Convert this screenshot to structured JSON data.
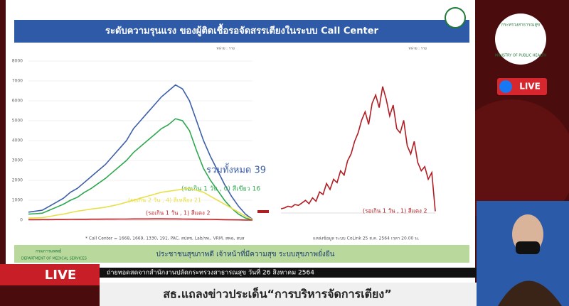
{
  "slide": {
    "title": "ระดับความรุนแรง ของผู้ติดเชื้อรอจัดสรรเตียงในระบบ Call Center",
    "department": "กรมการแพทย์",
    "department_en": "DEPARTMENT OF MEDICAL SERVICES",
    "slogan": "ประชาชนสุขภาพดี เจ้าหน้าที่มีความสุข ระบบสุขภาพยั่งยืน"
  },
  "chart_data": [
    {
      "type": "line",
      "unit": "หน่วย : ราย",
      "ylim": [
        0,
        8000
      ],
      "yticks": [
        0,
        1000,
        2000,
        3000,
        4000,
        5000,
        6000,
        7000,
        8000
      ],
      "footnote": "* Call Center = 1668, 1669, 1330, 191, PAC, สปสช, Lab/รพ., VRM, สพฉ, สบส",
      "series": [
        {
          "name": "รวมทั้งหมด 39",
          "color": "#3c5fa8",
          "values": [
            400,
            450,
            500,
            700,
            900,
            1100,
            1400,
            1600,
            1900,
            2200,
            2500,
            2800,
            3200,
            3600,
            4000,
            4600,
            5000,
            5400,
            5800,
            6200,
            6500,
            6800,
            6600,
            6000,
            5000,
            4000,
            3200,
            2500,
            1800,
            1200,
            700,
            300,
            39
          ]
        },
        {
          "name": "(รอเกิน 1 วัน , 0) สีเขียว 16",
          "color": "#2fa84f",
          "values": [
            300,
            320,
            350,
            500,
            650,
            800,
            1000,
            1150,
            1400,
            1600,
            1850,
            2100,
            2400,
            2700,
            3000,
            3400,
            3700,
            4000,
            4300,
            4600,
            4800,
            5100,
            5000,
            4500,
            3500,
            2600,
            2000,
            1500,
            1000,
            600,
            300,
            100,
            16
          ]
        },
        {
          "name": "(รอเกิน 2 วัน , 4) สีเหลือง 21",
          "color": "#e8e04a",
          "values": [
            100,
            110,
            130,
            180,
            250,
            300,
            380,
            450,
            500,
            560,
            600,
            650,
            720,
            800,
            900,
            1000,
            1100,
            1200,
            1300,
            1400,
            1450,
            1500,
            1550,
            1600,
            1500,
            1400,
            1200,
            1000,
            800,
            600,
            400,
            200,
            21
          ]
        },
        {
          "name": "(รอเกิน 1 วัน , 1) สีแดง 2",
          "color": "#c0242a",
          "values": [
            20,
            20,
            25,
            25,
            30,
            30,
            35,
            40,
            40,
            45,
            45,
            50,
            50,
            55,
            55,
            60,
            60,
            60,
            65,
            65,
            60,
            60,
            55,
            50,
            45,
            40,
            35,
            30,
            20,
            15,
            10,
            5,
            2
          ]
        }
      ]
    },
    {
      "type": "line",
      "unit": "หน่วย : ราย",
      "ylim": [
        0,
        160
      ],
      "footnote": "แหล่งข้อมูล ระบบ CoLink 25 ส.ค. 2564 เวลา 20.00 น.",
      "series": [
        {
          "name": "(รอเกิน 1 วัน , 1) สีแดง 2",
          "color": "#b01e24",
          "values": [
            5,
            6,
            8,
            7,
            10,
            9,
            12,
            15,
            11,
            18,
            14,
            25,
            22,
            35,
            28,
            40,
            36,
            50,
            45,
            62,
            70,
            85,
            95,
            110,
            120,
            105,
            130,
            140,
            125,
            150,
            135,
            115,
            128,
            100,
            95,
            110,
            80,
            70,
            85,
            60,
            50,
            55,
            40,
            48,
            2
          ]
        }
      ]
    }
  ],
  "broadcast": {
    "live": "LIVE",
    "fb_live": "LIVE",
    "ministry": "กระทรวงสาธารณสุข",
    "ministry_en": "MINISTRY OF PUBLIC HEALTH",
    "ticker": "ถ่ายทอดสดจากสำนักงานปลัดกระทรวงสาธารณสุข วันที่ 26 สิงหาคม 2564",
    "headline": "สธ.แถลงข่าวประเด็น“การบริหารจัดการเตียง”"
  }
}
